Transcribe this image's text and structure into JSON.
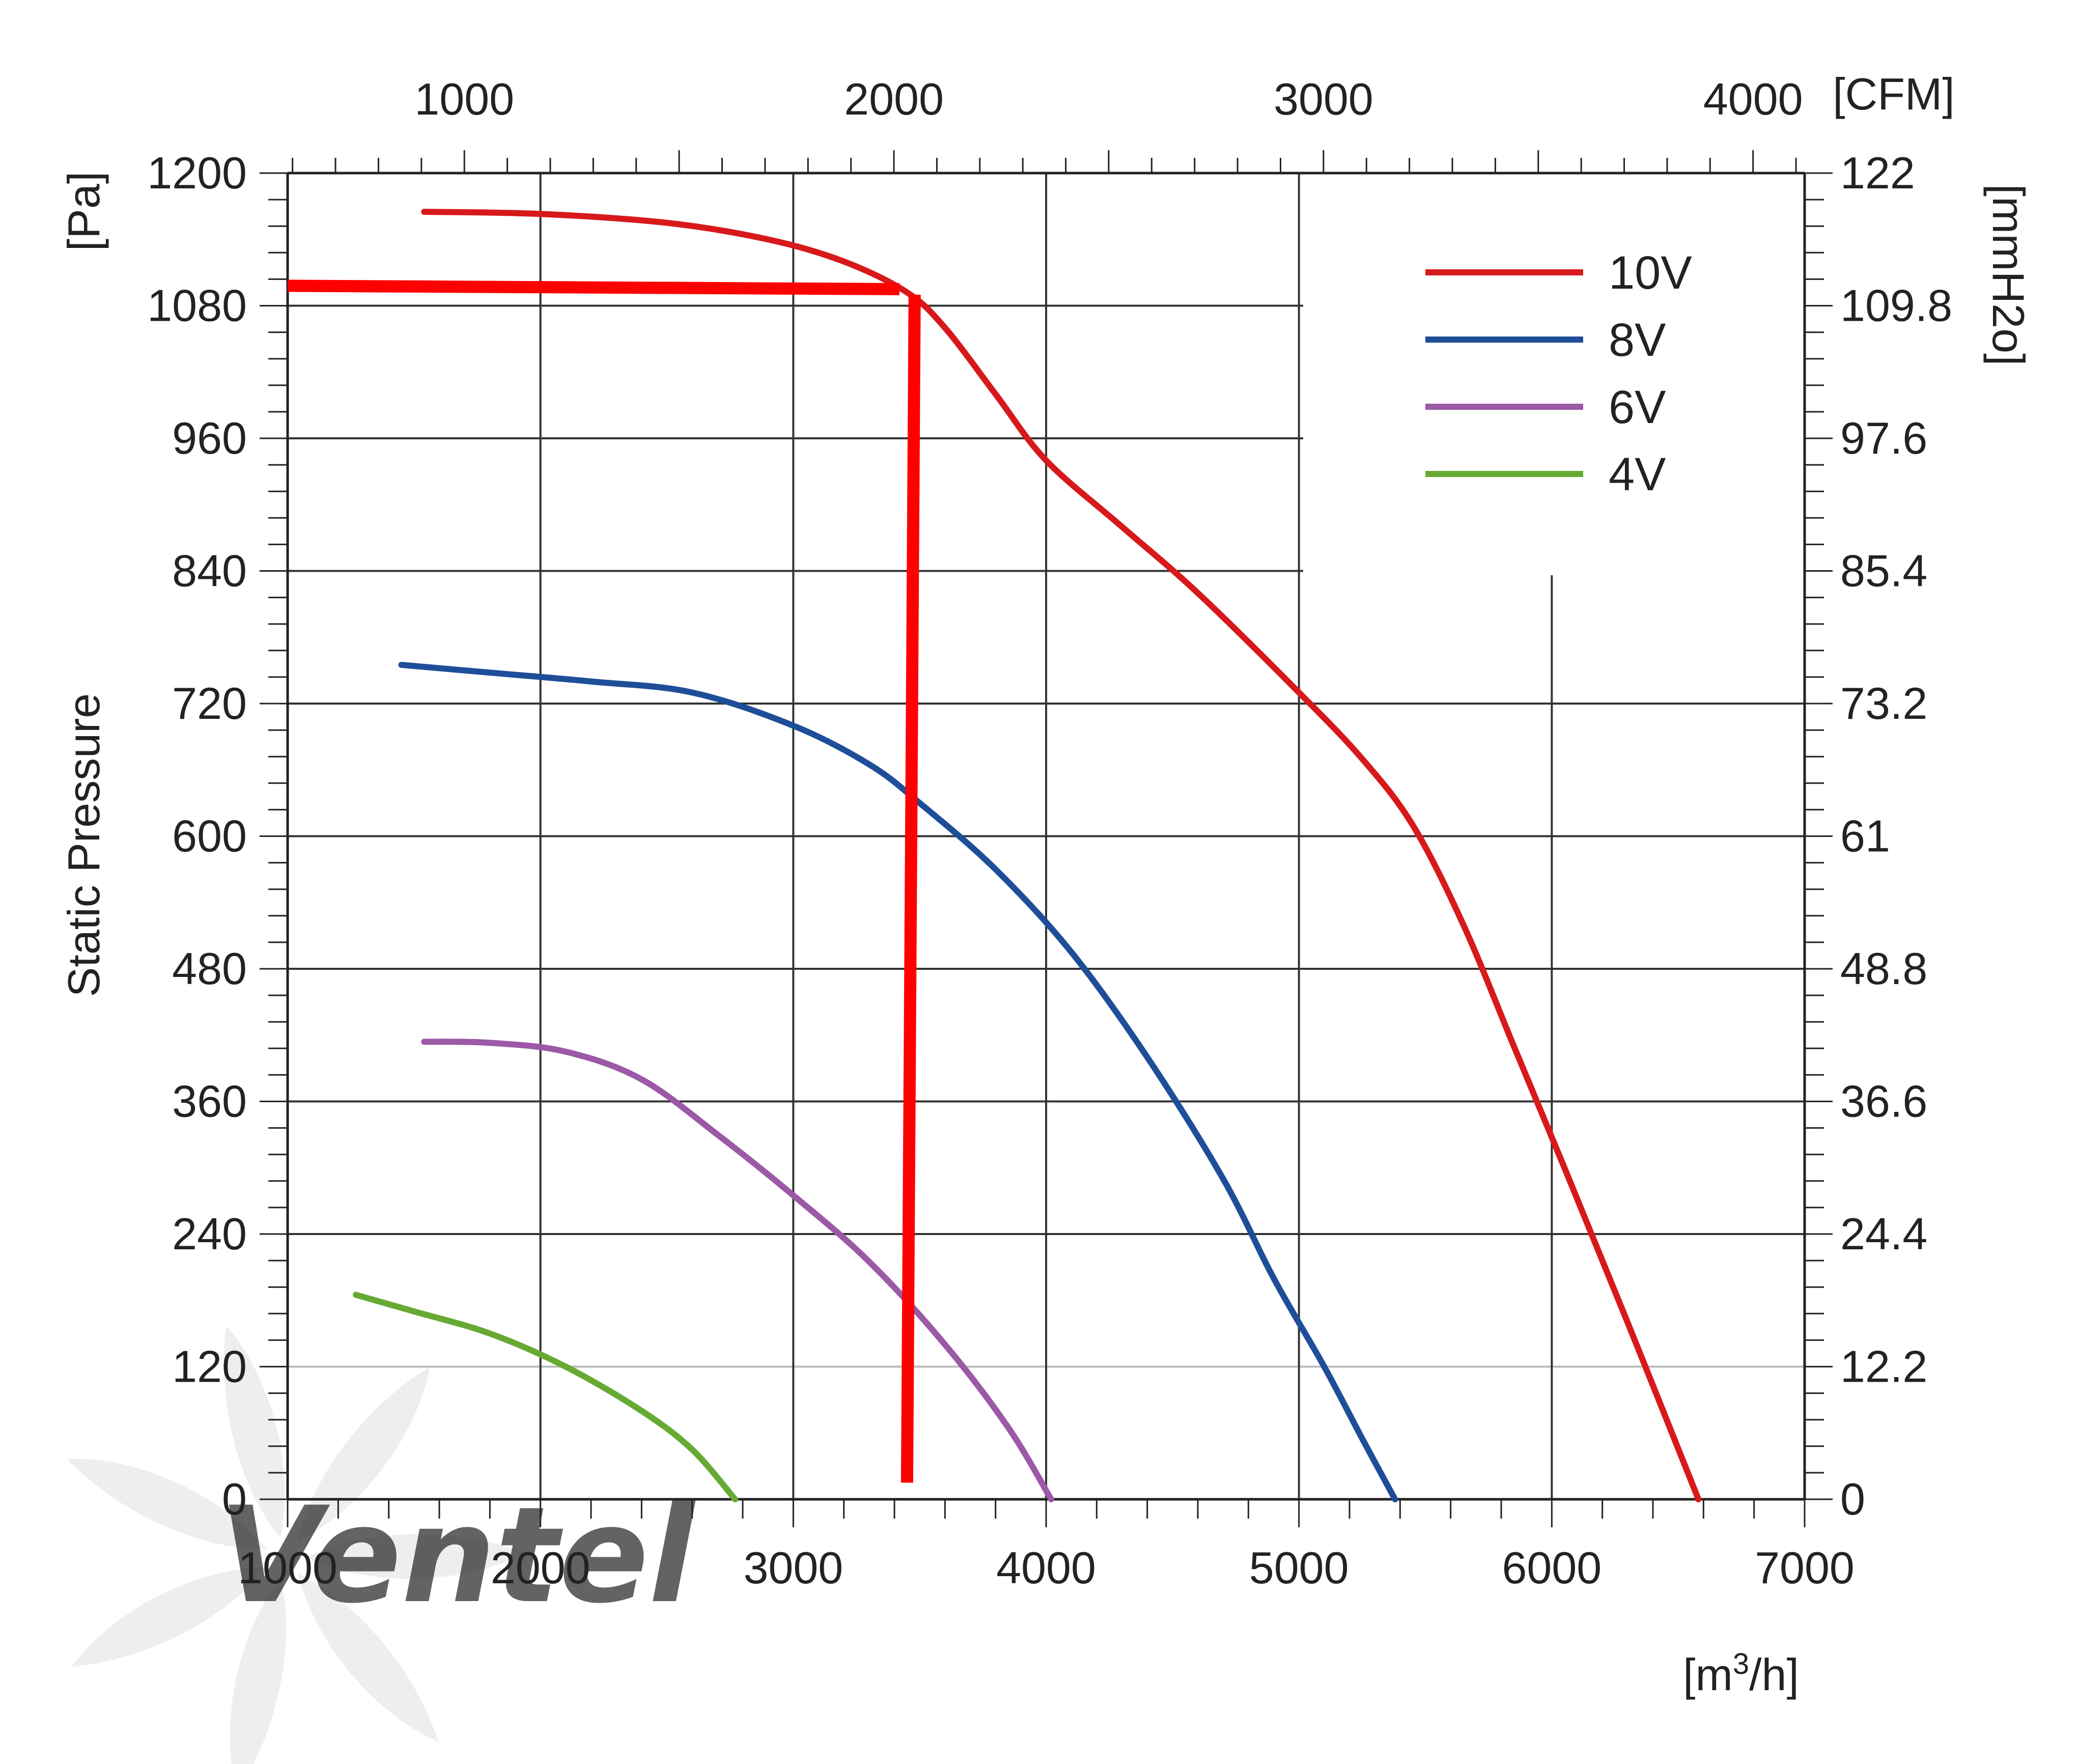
{
  "chart_data": {
    "type": "line",
    "ylabel": "Static Pressure",
    "x_unit": "[m³/h]",
    "x_unit_base": "[m",
    "x_unit_sup": "3",
    "x_unit_tail": "/h]",
    "y_unit": "[Pa]",
    "x2_unit": "[CFM]",
    "y2_unit": "[mmH2o]",
    "xlim": [
      1000,
      7000
    ],
    "ylim": [
      0,
      1200
    ],
    "x_ticks": [
      "1000",
      "2000",
      "3000",
      "4000",
      "5000",
      "6000",
      "7000"
    ],
    "y_ticks": [
      "0",
      "120",
      "240",
      "360",
      "480",
      "600",
      "720",
      "840",
      "960",
      "1080",
      "1200"
    ],
    "x2_ticks": [
      {
        "value": 1000,
        "label": "1000"
      },
      {
        "value": 2000,
        "label": "2000"
      },
      {
        "value": 3000,
        "label": "3000"
      },
      {
        "value": 4000,
        "label": "4000"
      }
    ],
    "y2_ticks": [
      "0",
      "12.2",
      "24.4",
      "36.6",
      "48.8",
      "61",
      "73.2",
      "85.4",
      "97.6",
      "109.8",
      "122"
    ],
    "grid": true,
    "legend_position": "top-right",
    "series": [
      {
        "name": "10V",
        "color": "#d7191c",
        "x": [
          1540,
          2000,
          2500,
          2900,
          3200,
          3450,
          3600,
          3800,
          4000,
          4300,
          4600,
          5000,
          5250,
          5450,
          5650,
          5850,
          6050,
          6300,
          6580
        ],
        "y": [
          1165,
          1163,
          1155,
          1140,
          1120,
          1092,
          1060,
          1000,
          940,
          880,
          820,
          730,
          670,
          610,
          520,
          410,
          300,
          160,
          0
        ]
      },
      {
        "name": "8V",
        "color": "#1f4e99",
        "x": [
          1450,
          1800,
          2200,
          2600,
          3000,
          3300,
          3500,
          3800,
          4100,
          4400,
          4700,
          4900,
          5100,
          5250,
          5380
        ],
        "y": [
          755,
          748,
          740,
          730,
          700,
          665,
          630,
          570,
          495,
          400,
          290,
          200,
          120,
          55,
          0
        ]
      },
      {
        "name": "6V",
        "color": "#9b59a6",
        "x": [
          1540,
          1800,
          2100,
          2400,
          2700,
          3000,
          3300,
          3600,
          3850,
          4020
        ],
        "y": [
          414,
          413,
          405,
          380,
          330,
          275,
          215,
          140,
          65,
          0
        ]
      },
      {
        "name": "4V",
        "color": "#66aa33",
        "x": [
          1270,
          1500,
          1800,
          2100,
          2400,
          2600,
          2770
        ],
        "y": [
          185,
          170,
          150,
          120,
          80,
          45,
          0
        ]
      }
    ],
    "annotations": [
      {
        "type": "operating-point-horizontal",
        "color": "#ff0000",
        "x": [
          1000,
          3420
        ],
        "y": [
          1098,
          1095
        ]
      },
      {
        "type": "operating-point-vertical",
        "color": "#ff0000",
        "x": [
          3480,
          3450
        ],
        "y": [
          1090,
          15
        ]
      }
    ],
    "colors": {
      "grid_dark": "#333333",
      "grid_light": "#bbbbbb",
      "axis": "#222222",
      "annotation": "#ff0000"
    },
    "watermark": {
      "text": "Ventel",
      "fan_icon": "fan-blades-icon"
    }
  }
}
